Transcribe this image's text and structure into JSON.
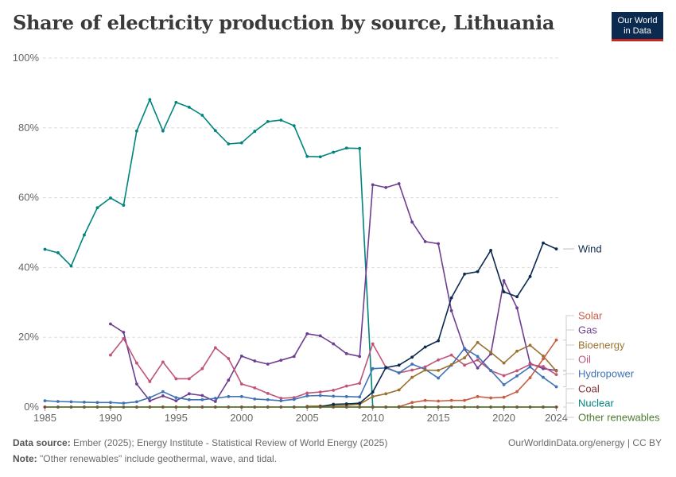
{
  "title": "Share of electricity production by source, Lithuania",
  "logo": {
    "line1": "Our World",
    "line2": "in Data"
  },
  "footer": {
    "source_label": "Data source:",
    "source_text": "Ember (2025); Energy Institute - Statistical Review of World Energy (2025)",
    "url_text": "OurWorldinData.org/energy | CC BY",
    "note_label": "Note:",
    "note_text": "\"Other renewables\" include geothermal, wave, and tidal."
  },
  "chart_data": {
    "type": "line",
    "title": "Share of electricity production by source, Lithuania",
    "xlim": [
      1985,
      2024
    ],
    "ylim": [
      0,
      100
    ],
    "x_ticks": [
      1985,
      1990,
      1995,
      2000,
      2005,
      2010,
      2015,
      2020,
      2024
    ],
    "y_ticks": [
      0,
      20,
      40,
      60,
      80,
      100
    ],
    "y_tick_labels": [
      "0%",
      "20%",
      "40%",
      "60%",
      "80%",
      "100%"
    ],
    "grid": "horizontal dashed",
    "legend": "right, labels at line ends",
    "series": [
      {
        "name": "Nuclear",
        "color": "#00847e",
        "x": [
          1985,
          1986,
          1987,
          1988,
          1989,
          1990,
          1991,
          1992,
          1993,
          1994,
          1995,
          1996,
          1997,
          1998,
          1999,
          2000,
          2001,
          2002,
          2003,
          2004,
          2005,
          2006,
          2007,
          2008,
          2009,
          2010
        ],
        "values": [
          45.2,
          44.2,
          40.4,
          49.3,
          57.1,
          59.9,
          57.8,
          79.1,
          88.1,
          79.1,
          87.3,
          85.9,
          83.6,
          79.2,
          75.4,
          75.7,
          79.0,
          81.8,
          82.2,
          80.6,
          71.8,
          71.7,
          73.0,
          74.2,
          74.1,
          0
        ]
      },
      {
        "name": "Gas",
        "color": "#6d3e91",
        "x": [
          1990,
          1991,
          1992,
          1993,
          1994,
          1995,
          1996,
          1997,
          1998,
          1999,
          2000,
          2001,
          2002,
          2003,
          2004,
          2005,
          2006,
          2007,
          2008,
          2009,
          2010,
          2011,
          2012,
          2013,
          2014,
          2015,
          2016,
          2017,
          2018,
          2019,
          2020,
          2021,
          2022,
          2023,
          2024
        ],
        "values": [
          23.8,
          21.4,
          6.6,
          1.8,
          3.2,
          1.8,
          3.8,
          3.3,
          1.6,
          7.7,
          14.6,
          13.2,
          12.3,
          13.4,
          14.5,
          21.0,
          20.4,
          18.1,
          15.3,
          14.5,
          63.7,
          62.9,
          64.0,
          53.0,
          47.4,
          46.8,
          27.6,
          16.6,
          11.2,
          15.2,
          36.2,
          28.4,
          12.5,
          11.0,
          10.5
        ]
      },
      {
        "name": "Oil",
        "color": "#c05478",
        "x": [
          1990,
          1991,
          1992,
          1993,
          1994,
          1995,
          1996,
          1997,
          1998,
          1999,
          2000,
          2001,
          2002,
          2003,
          2004,
          2005,
          2006,
          2007,
          2008,
          2009,
          2010,
          2011,
          2012,
          2013,
          2014,
          2015,
          2016,
          2017,
          2018,
          2019,
          2020,
          2021,
          2022,
          2023,
          2024
        ],
        "values": [
          14.9,
          19.6,
          12.6,
          7.3,
          12.9,
          8.1,
          8.1,
          11.0,
          17.0,
          13.9,
          6.6,
          5.5,
          3.9,
          2.5,
          2.7,
          4.0,
          4.3,
          4.8,
          6.0,
          6.8,
          18.1,
          11.4,
          9.8,
          10.6,
          11.5,
          13.5,
          14.9,
          12.0,
          13.5,
          10.4,
          9.0,
          10.4,
          12.2,
          11.6,
          9.3
        ]
      },
      {
        "name": "Hydropower",
        "color": "#3e73b6",
        "x": [
          1985,
          1986,
          1987,
          1988,
          1989,
          1990,
          1991,
          1992,
          1993,
          1994,
          1995,
          1996,
          1997,
          1998,
          1999,
          2000,
          2001,
          2002,
          2003,
          2004,
          2005,
          2006,
          2007,
          2008,
          2009,
          2010,
          2011,
          2012,
          2013,
          2014,
          2015,
          2016,
          2017,
          2018,
          2019,
          2020,
          2021,
          2022,
          2023,
          2024
        ],
        "values": [
          1.8,
          1.6,
          1.5,
          1.4,
          1.3,
          1.3,
          1.1,
          1.5,
          2.7,
          4.4,
          2.7,
          2.1,
          2.1,
          2.5,
          3.0,
          3.0,
          2.3,
          2.1,
          1.8,
          2.2,
          3.2,
          3.3,
          3.1,
          3.0,
          2.9,
          11.0,
          11.2,
          9.8,
          12.3,
          10.8,
          8.3,
          12.0,
          16.8,
          14.5,
          10.5,
          6.4,
          8.9,
          11.5,
          8.5,
          5.8
        ]
      },
      {
        "name": "Bioenergy",
        "color": "#9a7230",
        "x": [
          2005,
          2006,
          2007,
          2008,
          2009,
          2010,
          2011,
          2012,
          2013,
          2014,
          2015,
          2016,
          2017,
          2018,
          2019,
          2020,
          2021,
          2022,
          2023,
          2024
        ],
        "values": [
          0.2,
          0.3,
          0.4,
          0.5,
          0.8,
          3.0,
          3.8,
          4.9,
          8.5,
          10.6,
          10.5,
          12.1,
          14.1,
          18.5,
          15.7,
          12.6,
          16.0,
          17.7,
          14.6,
          10.3
        ]
      },
      {
        "name": "Wind",
        "color": "#0b2a4f",
        "x": [
          2006,
          2007,
          2008,
          2009,
          2010,
          2011,
          2012,
          2013,
          2014,
          2015,
          2016,
          2017,
          2018,
          2019,
          2020,
          2021,
          2022,
          2023,
          2024
        ],
        "values": [
          0.1,
          0.8,
          0.9,
          1.1,
          4.3,
          11.3,
          12.0,
          14.3,
          17.2,
          19.0,
          31.3,
          38.1,
          38.8,
          44.9,
          33.0,
          31.6,
          37.4,
          47.0,
          45.3
        ]
      },
      {
        "name": "Solar",
        "color": "#c95d44",
        "x": [
          2012,
          2013,
          2014,
          2015,
          2016,
          2017,
          2018,
          2019,
          2020,
          2021,
          2022,
          2023,
          2024
        ],
        "values": [
          0.1,
          1.3,
          1.9,
          1.7,
          1.9,
          1.9,
          3.0,
          2.6,
          2.8,
          4.4,
          8.4,
          13.8,
          19.2
        ]
      },
      {
        "name": "Coal",
        "color": "#8a3030",
        "x": [
          1985,
          1986,
          1987,
          1988,
          1989,
          1990,
          1991,
          1992,
          1993,
          1994,
          1995,
          1996,
          1997,
          1998,
          1999,
          2000,
          2001,
          2002,
          2003,
          2004,
          2005,
          2006,
          2007,
          2008,
          2009,
          2010,
          2011,
          2012,
          2013,
          2014,
          2015,
          2016,
          2017,
          2018,
          2019,
          2020,
          2021,
          2022,
          2023,
          2024
        ],
        "values": [
          0,
          0,
          0,
          0,
          0,
          0,
          0,
          0,
          0,
          0,
          0,
          0,
          0,
          0,
          0,
          0,
          0,
          0,
          0,
          0,
          0,
          0,
          0,
          0,
          0,
          0,
          0,
          0,
          0,
          0,
          0,
          0,
          0,
          0,
          0,
          0,
          0,
          0,
          0,
          0
        ]
      },
      {
        "name": "Other renewables",
        "color": "#4c7a2e",
        "x": [
          1985,
          2024
        ],
        "values": [
          0,
          0
        ]
      }
    ],
    "legend_order": [
      "Wind",
      "Solar",
      "Gas",
      "Bioenergy",
      "Oil",
      "Hydropower",
      "Coal",
      "Nuclear",
      "Other renewables"
    ]
  }
}
